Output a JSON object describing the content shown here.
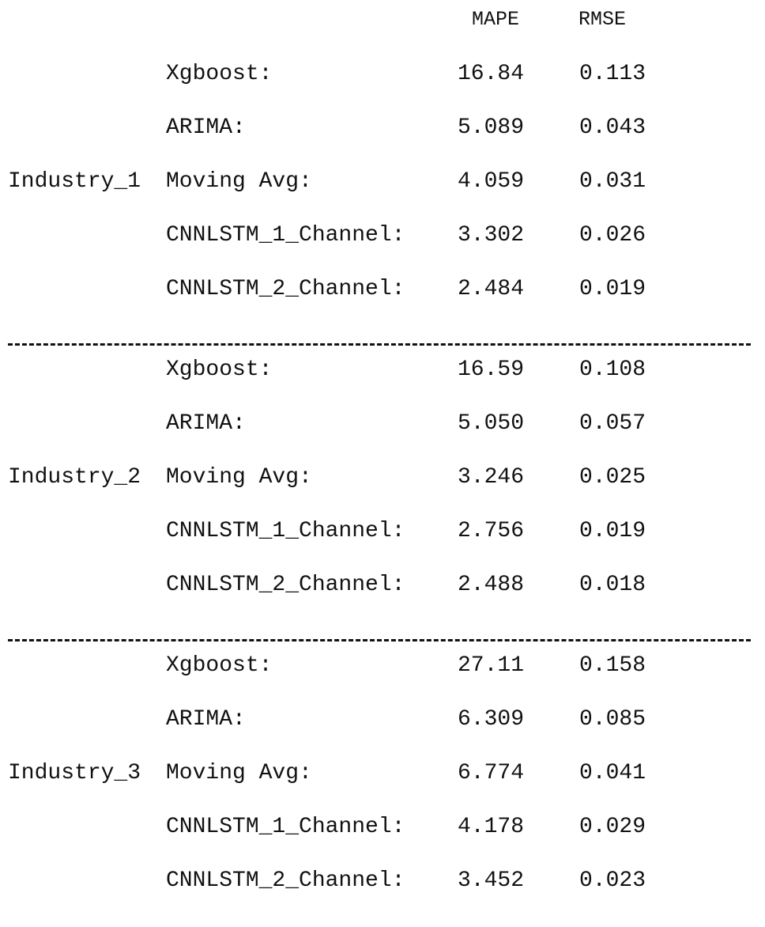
{
  "header": {
    "mape": "MAPE",
    "rmse": "RMSE"
  },
  "sections": [
    {
      "industry": "Industry_1",
      "rows": [
        {
          "model": "Xgboost:",
          "mape": "16.84",
          "rmse": "0.113"
        },
        {
          "model": "ARIMA:",
          "mape": "5.089",
          "rmse": "0.043"
        },
        {
          "model": "Moving Avg:",
          "mape": "4.059",
          "rmse": "0.031"
        },
        {
          "model": "CNNLSTM_1_Channel:",
          "mape": "3.302",
          "rmse": "0.026"
        },
        {
          "model": "CNNLSTM_2_Channel:",
          "mape": "2.484",
          "rmse": "0.019"
        }
      ]
    },
    {
      "industry": "Industry_2",
      "rows": [
        {
          "model": "Xgboost:",
          "mape": "16.59",
          "rmse": "0.108"
        },
        {
          "model": "ARIMA:",
          "mape": "5.050",
          "rmse": "0.057"
        },
        {
          "model": "Moving Avg:",
          "mape": "3.246",
          "rmse": "0.025"
        },
        {
          "model": "CNNLSTM_1_Channel:",
          "mape": "2.756",
          "rmse": "0.019"
        },
        {
          "model": "CNNLSTM_2_Channel:",
          "mape": "2.488",
          "rmse": "0.018"
        }
      ]
    },
    {
      "industry": "Industry_3",
      "rows": [
        {
          "model": "Xgboost:",
          "mape": "27.11",
          "rmse": "0.158"
        },
        {
          "model": "ARIMA:",
          "mape": "6.309",
          "rmse": "0.085"
        },
        {
          "model": "Moving Avg:",
          "mape": "6.774",
          "rmse": "0.041"
        },
        {
          "model": "CNNLSTM_1_Channel:",
          "mape": "4.178",
          "rmse": "0.029"
        },
        {
          "model": "CNNLSTM_2_Channel:",
          "mape": "3.452",
          "rmse": "0.023"
        }
      ]
    }
  ]
}
